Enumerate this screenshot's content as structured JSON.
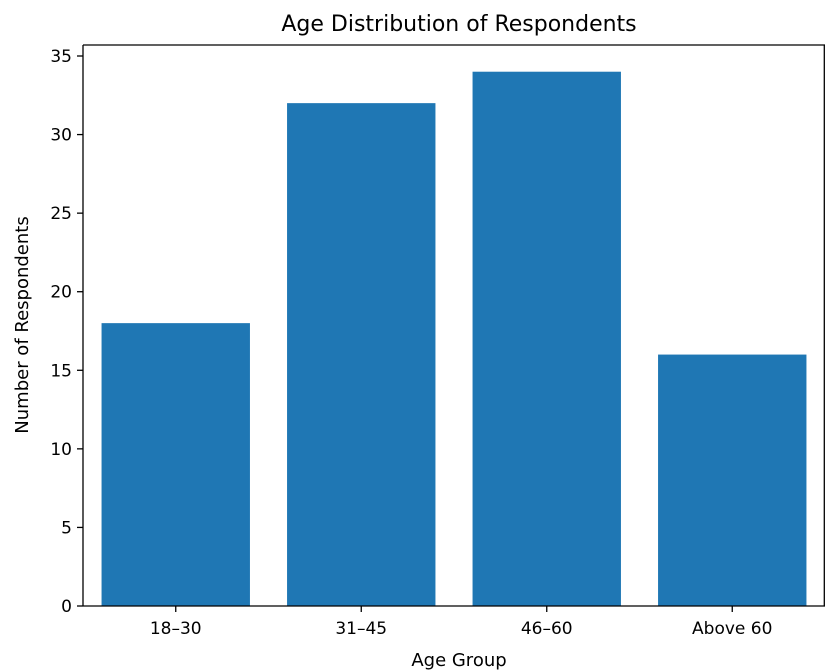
{
  "chart_data": {
    "type": "bar",
    "title": "Age Distribution of Respondents",
    "xlabel": "Age Group",
    "ylabel": "Number of Respondents",
    "categories": [
      "18–30",
      "31–45",
      "46–60",
      "Above 60"
    ],
    "values": [
      18,
      32,
      34,
      16
    ],
    "ylim": [
      0,
      35.7
    ],
    "yticks": [
      "0",
      "5",
      "10",
      "15",
      "20",
      "25",
      "30",
      "35"
    ],
    "grid": false,
    "bar_color": "#1f77b4"
  }
}
